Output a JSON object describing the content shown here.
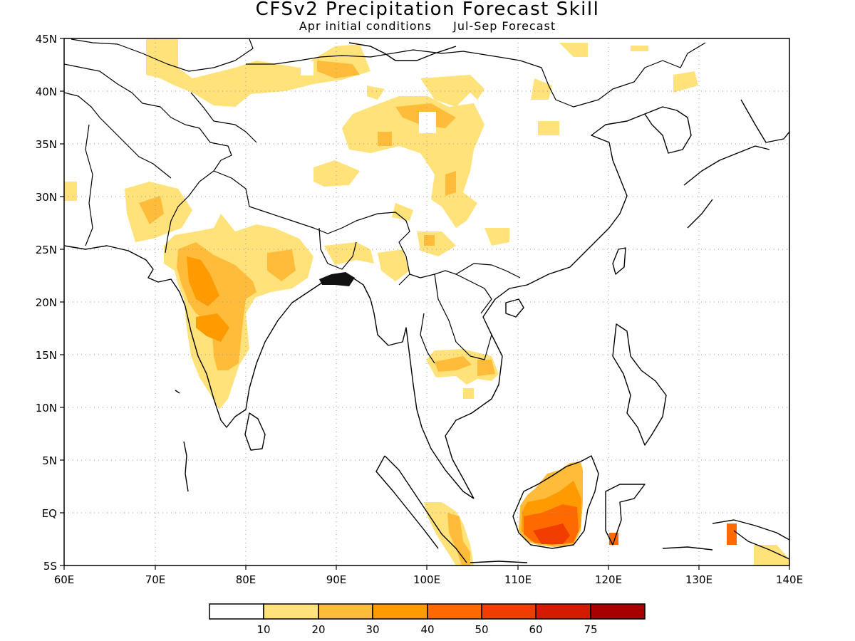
{
  "title": "CFSv2 Precipitation Forecast Skill",
  "subtitle_left": "Apr initial conditions",
  "subtitle_right": "Jul-Sep Forecast",
  "map": {
    "lon_range": [
      60,
      140
    ],
    "lat_range": [
      -5,
      45
    ],
    "lon_ticks": [
      "60E",
      "70E",
      "80E",
      "90E",
      "100E",
      "110E",
      "120E",
      "130E",
      "140E"
    ],
    "lat_ticks": [
      "45N",
      "40N",
      "35N",
      "30N",
      "25N",
      "20N",
      "15N",
      "10N",
      "5N",
      "EQ",
      "5S"
    ]
  },
  "legend": {
    "colors": [
      "#ffffff",
      "#ffe27a",
      "#ffbc3a",
      "#ff9a00",
      "#ff6a00",
      "#f23d00",
      "#d61a00",
      "#a60000"
    ],
    "labels": [
      "10",
      "20",
      "30",
      "40",
      "50",
      "60",
      "75"
    ]
  }
}
